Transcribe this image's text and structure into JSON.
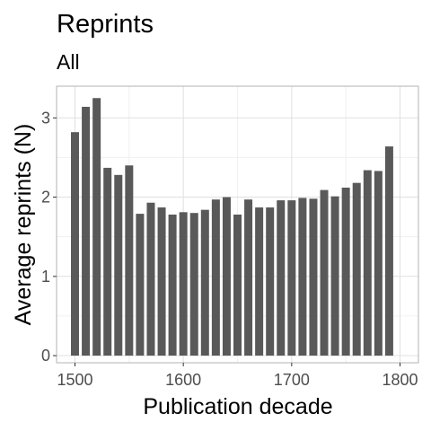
{
  "chart_data": {
    "type": "bar",
    "title": "Reprints",
    "subtitle": "All",
    "xlabel": "Publication decade",
    "ylabel": "Average reprints (N)",
    "x": [
      1500,
      1510,
      1520,
      1530,
      1540,
      1550,
      1560,
      1570,
      1580,
      1590,
      1600,
      1610,
      1620,
      1630,
      1640,
      1650,
      1660,
      1670,
      1680,
      1690,
      1700,
      1710,
      1720,
      1730,
      1740,
      1750,
      1760,
      1770,
      1780,
      1790
    ],
    "values": [
      2.82,
      3.14,
      3.25,
      2.37,
      2.28,
      2.4,
      1.79,
      1.93,
      1.87,
      1.78,
      1.81,
      1.8,
      1.84,
      1.97,
      2.0,
      1.78,
      1.97,
      1.87,
      1.87,
      1.96,
      1.96,
      1.99,
      1.98,
      2.09,
      2.01,
      2.12,
      2.18,
      2.34,
      2.33,
      2.64
    ],
    "xlim": [
      1483,
      1817
    ],
    "ylim": [
      -0.09,
      3.4
    ],
    "x_ticks": [
      1500,
      1600,
      1700,
      1800
    ],
    "x_tick_labels": [
      "1500",
      "1600",
      "1700",
      "1800"
    ],
    "y_ticks": [
      0,
      1,
      2,
      3
    ],
    "y_tick_labels": [
      "0",
      "1",
      "2",
      "3"
    ],
    "grid": true,
    "legend": "none",
    "colors": {
      "bar": "#595959",
      "grid_major": "#e0e0e0",
      "grid_minor": "#f0f0f0",
      "panel_border": "#b3b3b3",
      "tick_mark": "#333333",
      "tick_label": "#4d4d4d",
      "text": "#000000"
    }
  }
}
